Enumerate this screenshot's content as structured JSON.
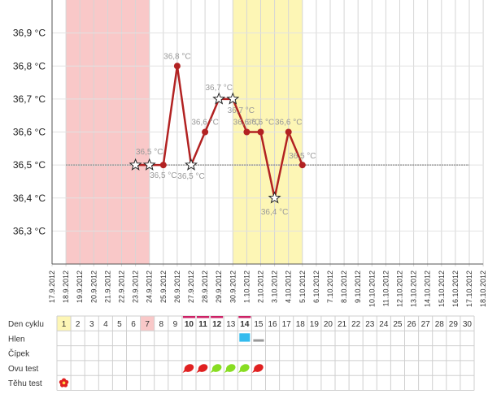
{
  "chart_data": {
    "type": "line",
    "title": "",
    "xlabel": "",
    "ylabel": "",
    "ylim": [
      36.2,
      37.0
    ],
    "yticks": [
      "36,3 °C",
      "36,4 °C",
      "36,5 °C",
      "36,6 °C",
      "36,7 °C",
      "36,8 °C",
      "36,9 °C"
    ],
    "y_tick_values": [
      36.3,
      36.4,
      36.5,
      36.6,
      36.7,
      36.8,
      36.9
    ],
    "categories": [
      "17.9.2012",
      "18.9.2012",
      "19.9.2012",
      "20.9.2012",
      "21.9.2012",
      "22.9.2012",
      "23.9.2012",
      "24.9.2012",
      "25.9.2012",
      "26.9.2012",
      "27.9.2012",
      "28.9.2012",
      "29.9.2012",
      "30.9.2012",
      "1.10.2012",
      "2.10.2012",
      "3.10.2012",
      "4.10.2012",
      "5.10.2012",
      "6.10.2012",
      "7.10.2012",
      "8.10.2012",
      "9.10.2012",
      "10.10.2012",
      "11.10.2012",
      "12.10.2012",
      "13.10.2012",
      "14.10.2012",
      "15.10.2012",
      "16.10.2012",
      "17.10.2012",
      "18.10.2012"
    ],
    "series": [
      {
        "points": [
          {
            "x": "23.9.2012",
            "y": 36.5,
            "marker": "star",
            "label": ""
          },
          {
            "x": "24.9.2012",
            "y": 36.5,
            "marker": "star",
            "label": "36,5 °C"
          },
          {
            "x": "25.9.2012",
            "y": 36.5,
            "marker": "dot",
            "label": "36,5 °C"
          },
          {
            "x": "26.9.2012",
            "y": 36.8,
            "marker": "dot",
            "label": "36,8 °C"
          },
          {
            "x": "27.9.2012",
            "y": 36.5,
            "marker": "star",
            "label": "36,5 °C"
          },
          {
            "x": "28.9.2012",
            "y": 36.6,
            "marker": "dot",
            "label": "36,6 °C"
          },
          {
            "x": "29.9.2012",
            "y": 36.7,
            "marker": "star",
            "label": "36,7 °C"
          },
          {
            "x": "30.9.2012",
            "y": 36.7,
            "marker": "star",
            "label": "36,7 °C"
          },
          {
            "x": "1.10.2012",
            "y": 36.6,
            "marker": "dot",
            "label": "36,6 °C"
          },
          {
            "x": "2.10.2012",
            "y": 36.6,
            "marker": "dot",
            "label": "36,6 °C"
          },
          {
            "x": "3.10.2012",
            "y": 36.4,
            "marker": "star",
            "label": "36,4 °C"
          },
          {
            "x": "4.10.2012",
            "y": 36.6,
            "marker": "dot",
            "label": "36,6 °C"
          },
          {
            "x": "5.10.2012",
            "y": 36.5,
            "marker": "dot",
            "label": "36,5 °C"
          }
        ]
      }
    ],
    "baseline_value": 36.5,
    "baseline_from": "18.9.2012",
    "baseline_to": "17.10.2012",
    "shaded_ranges": [
      {
        "from": "18.9.2012",
        "to": "24.9.2012",
        "color": "#f9c8c8"
      },
      {
        "from": "30.9.2012",
        "to": "5.10.2012",
        "color": "#fdf6b5"
      }
    ],
    "line_color": "#b22222",
    "grid": true
  },
  "table": {
    "row_labels": [
      "Den cyklu",
      "Hlen",
      "Čípek",
      "Ovu test",
      "Těhu test"
    ],
    "days": [
      "1",
      "2",
      "3",
      "4",
      "5",
      "6",
      "7",
      "8",
      "9",
      "10",
      "11",
      "12",
      "13",
      "14",
      "15",
      "16",
      "17",
      "18",
      "19",
      "20",
      "21",
      "22",
      "23",
      "24",
      "25",
      "26",
      "27",
      "28",
      "29",
      "30"
    ],
    "highlight_yellow_days": [
      "1"
    ],
    "highlight_pink_days": [
      "7"
    ],
    "underlined_days": [
      "10",
      "11",
      "12",
      "14"
    ],
    "bold_days": [
      "10",
      "11",
      "12",
      "14"
    ],
    "hlen_marks": [
      {
        "day": "14",
        "color": "#33bbee",
        "kind": "block"
      },
      {
        "day": "15",
        "color": "#999999",
        "kind": "bar"
      }
    ],
    "ovu_marks": [
      {
        "day": "10",
        "color": "#e02020"
      },
      {
        "day": "11",
        "color": "#e02020"
      },
      {
        "day": "12",
        "color": "#88dd22"
      },
      {
        "day": "13",
        "color": "#88dd22"
      },
      {
        "day": "14",
        "color": "#88dd22"
      },
      {
        "day": "15",
        "color": "#e02020"
      }
    ],
    "tehu_marks": [
      {
        "day": "1",
        "icon": "flower-icon",
        "color": "#e02020"
      }
    ],
    "underline_color": "#cc2266"
  }
}
